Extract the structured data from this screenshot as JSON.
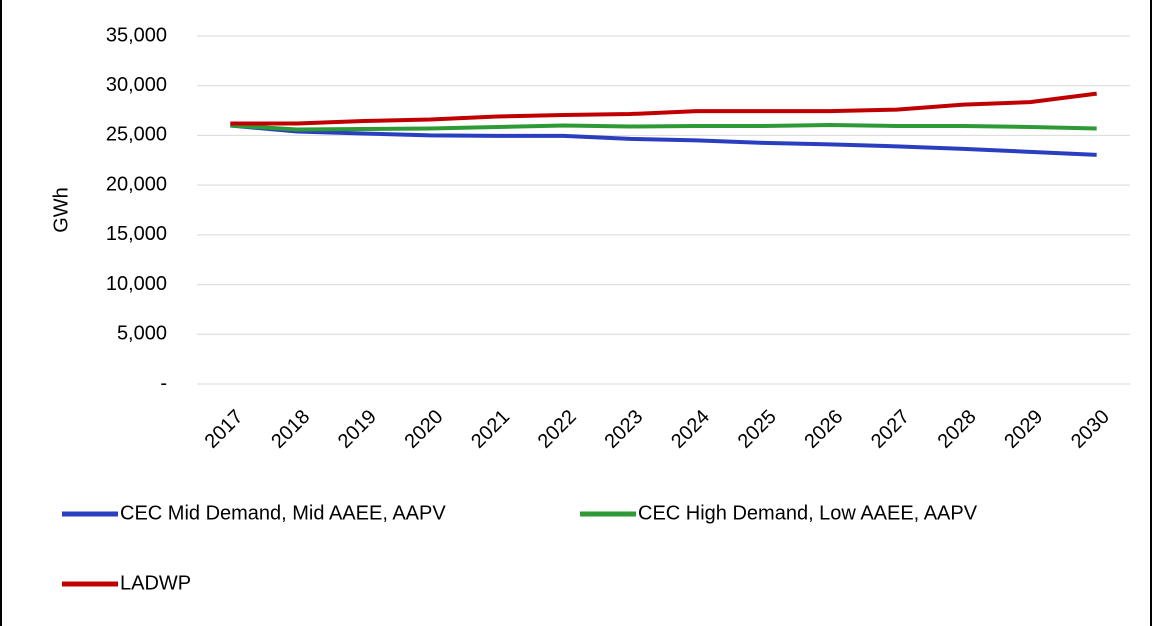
{
  "chart_data": {
    "type": "line",
    "y_label": "GWh",
    "categories": [
      "2017",
      "2018",
      "2019",
      "2020",
      "2021",
      "2022",
      "2023",
      "2024",
      "2025",
      "2026",
      "2027",
      "2028",
      "2029",
      "2030"
    ],
    "series": [
      {
        "name": "CEC Mid Demand, Mid AAEE, AAPV",
        "color": "#2a3fbf",
        "values": [
          26000,
          25400,
          25200,
          25000,
          24950,
          24950,
          24650,
          24500,
          24250,
          24100,
          23900,
          23650,
          23350,
          23050
        ]
      },
      {
        "name": "CEC High Demand, Low AAEE, AAPV",
        "color": "#2e9a35",
        "values": [
          26000,
          25600,
          25650,
          25700,
          25850,
          26000,
          25900,
          25950,
          25950,
          26050,
          25950,
          25950,
          25850,
          25700
        ]
      },
      {
        "name": "LADWP",
        "color": "#c00000",
        "values": [
          26200,
          26200,
          26450,
          26600,
          26900,
          27050,
          27150,
          27450,
          27450,
          27450,
          27600,
          28100,
          28350,
          29200
        ]
      }
    ],
    "ylim": [
      0,
      35000
    ],
    "yticks": [
      {
        "value": 0,
        "label": "-"
      },
      {
        "value": 5000,
        "label": "5,000"
      },
      {
        "value": 10000,
        "label": "10,000"
      },
      {
        "value": 15000,
        "label": "15,000"
      },
      {
        "value": 20000,
        "label": "20,000"
      },
      {
        "value": 25000,
        "label": "25,000"
      },
      {
        "value": 30000,
        "label": "30,000"
      },
      {
        "value": 35000,
        "label": "35,000"
      }
    ],
    "grid": true
  }
}
